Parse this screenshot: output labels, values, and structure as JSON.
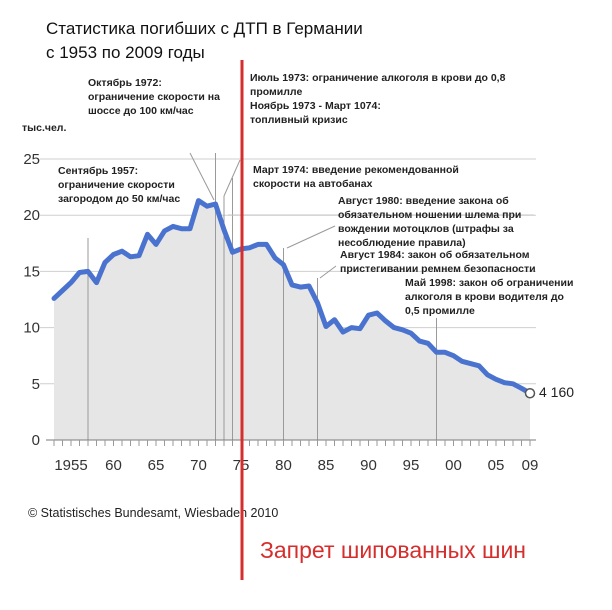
{
  "title_line1": "Статистика погибших с ДТП в Германии",
  "title_line2": "с 1953 по 2009 годы",
  "unit_label": "тыс.чел.",
  "source": "© Statistisches Bundesamt, Wiesbaden 2010",
  "red_note": "Запрет шипованных шин",
  "end_label": "4 160",
  "colors": {
    "line": "#4a73cf",
    "area": "#e6e6e6",
    "red": "#d62d2d",
    "grid": "#cfcfcf"
  },
  "annotations": [
    {
      "year": 1957,
      "lines": [
        "Сентябрь 1957:",
        "ограничение скорости",
        "загородом до 50 км/час"
      ]
    },
    {
      "year": 1972,
      "lines": [
        "Октябрь 1972:",
        "ограничение скорости на",
        "шоссе до 100 км/час"
      ]
    },
    {
      "year": 1973,
      "lines": [
        "Июль 1973: ограничение алкоголя в крови до 0,8",
        "промилле",
        "Ноябрь 1973 - Март 1074:",
        "топливный кризис"
      ]
    },
    {
      "year": 1974,
      "lines": [
        "Март 1974: введение рекомендованной",
        "скорости на автобанах"
      ]
    },
    {
      "year": 1980,
      "lines": [
        "Август 1980: введение закона об",
        "обязательном ношении шлема при",
        "вождении мотоцклов (штрафы за",
        "несоблюдение правила)"
      ]
    },
    {
      "year": 1984,
      "lines": [
        "Август 1984: закон об обязательном",
        "пристегивании ремнем безопасности"
      ]
    },
    {
      "year": 1998,
      "lines": [
        "Май 1998: закон об ограничении",
        "алкоголя в крови водителя до",
        "0,5 промилле"
      ]
    }
  ],
  "chart_data": {
    "type": "area",
    "title": "Статистика погибших с ДТП в Германии с 1953 по 2009 годы",
    "ylabel": "тыс.чел.",
    "ylim": [
      0,
      25
    ],
    "xlim": [
      1953,
      2009
    ],
    "y_ticks": [
      "0",
      "5",
      "10",
      "15",
      "20",
      "25"
    ],
    "x_ticks": [
      {
        "year": 1955,
        "label": "1955"
      },
      {
        "year": 1960,
        "label": "60"
      },
      {
        "year": 1965,
        "label": "65"
      },
      {
        "year": 1970,
        "label": "70"
      },
      {
        "year": 1975,
        "label": "75"
      },
      {
        "year": 1980,
        "label": "80"
      },
      {
        "year": 1985,
        "label": "85"
      },
      {
        "year": 1990,
        "label": "90"
      },
      {
        "year": 1995,
        "label": "95"
      },
      {
        "year": 2000,
        "label": "00"
      },
      {
        "year": 2005,
        "label": "05"
      },
      {
        "year": 2009,
        "label": "09"
      }
    ],
    "grid": "horizontal",
    "highlight_year": 1975,
    "x": [
      1953,
      1954,
      1955,
      1956,
      1957,
      1958,
      1959,
      1960,
      1961,
      1962,
      1963,
      1964,
      1965,
      1966,
      1967,
      1968,
      1969,
      1970,
      1971,
      1972,
      1973,
      1974,
      1975,
      1976,
      1977,
      1978,
      1979,
      1980,
      1981,
      1982,
      1983,
      1984,
      1985,
      1986,
      1987,
      1988,
      1989,
      1990,
      1991,
      1992,
      1993,
      1994,
      1995,
      1996,
      1997,
      1998,
      1999,
      2000,
      2001,
      2002,
      2003,
      2004,
      2005,
      2006,
      2007,
      2008,
      2009
    ],
    "values": [
      12.6,
      13.3,
      14.0,
      14.9,
      15.0,
      14.0,
      15.8,
      16.5,
      16.8,
      16.3,
      16.4,
      18.3,
      17.4,
      18.6,
      19.0,
      18.8,
      18.8,
      21.3,
      20.8,
      21.0,
      18.7,
      16.7,
      17.0,
      17.1,
      17.4,
      17.4,
      16.2,
      15.6,
      13.8,
      13.6,
      13.7,
      12.2,
      10.1,
      10.7,
      9.6,
      10.0,
      9.9,
      11.1,
      11.3,
      10.6,
      10.0,
      9.8,
      9.5,
      8.8,
      8.6,
      7.8,
      7.8,
      7.5,
      7.0,
      6.8,
      6.6,
      5.8,
      5.4,
      5.1,
      5.0,
      4.6,
      4.16
    ]
  }
}
